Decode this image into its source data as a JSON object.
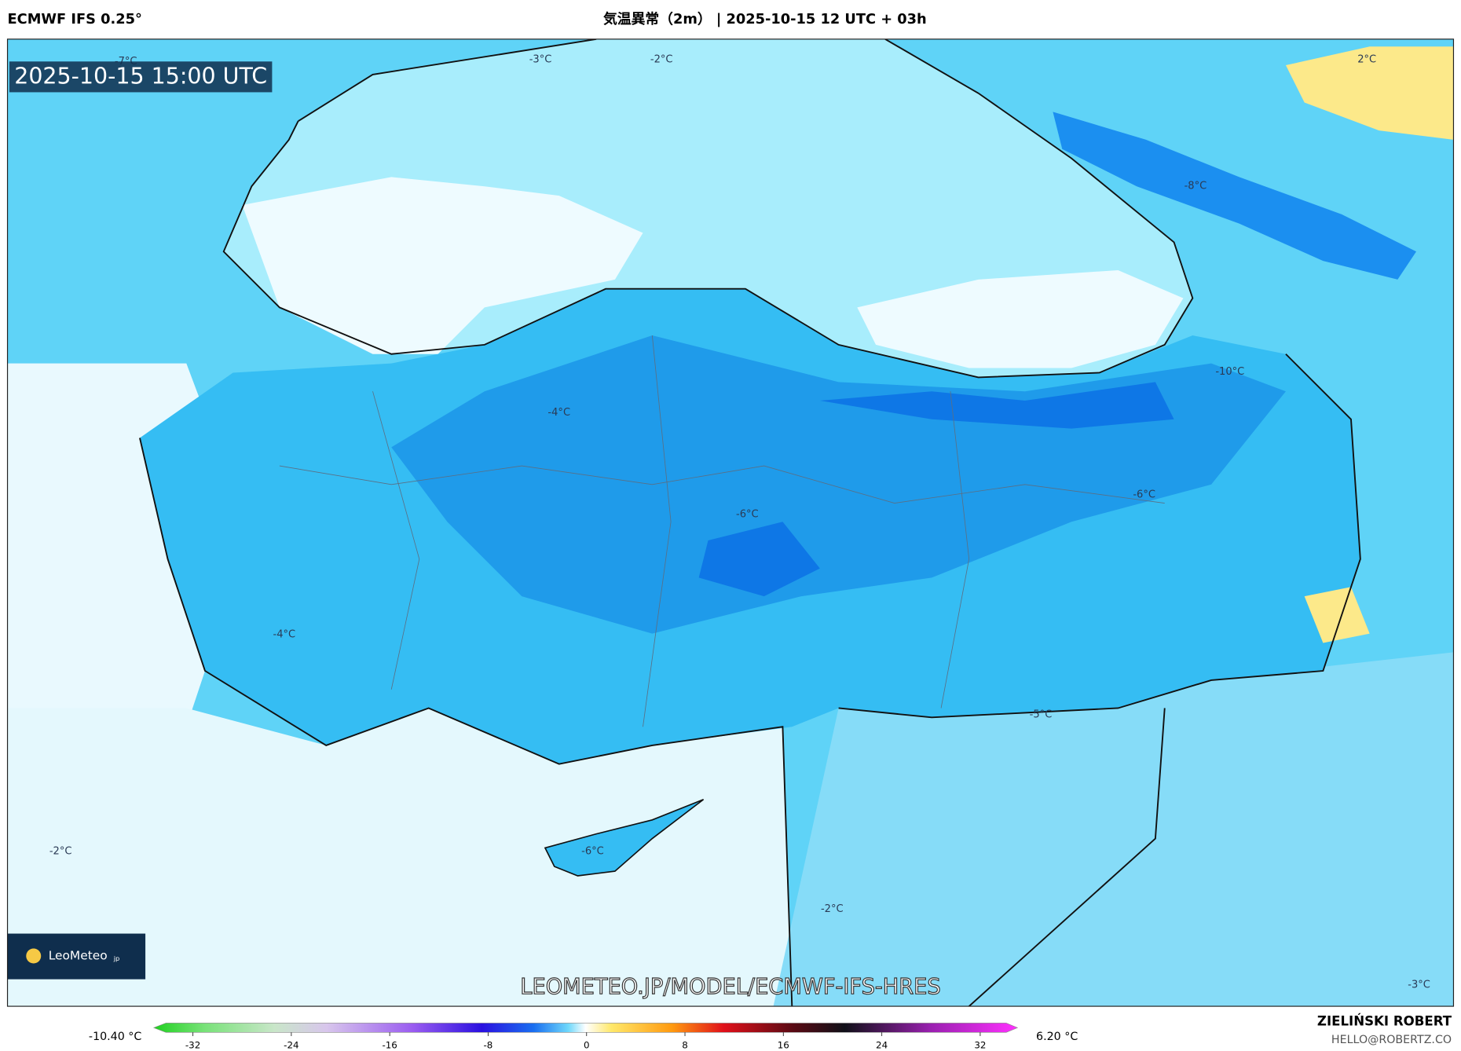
{
  "header": {
    "model": "ECMWF IFS 0.25°",
    "title": "気温異常（2m） | 2025-10-15 12 UTC + 03h"
  },
  "map": {
    "valid_time": "2025-10-15 15:00 UTC",
    "contour_labels": [
      "-7°C",
      "-3°C",
      "-2°C",
      "2°C",
      "-8°C",
      "-10°C",
      "-4°C",
      "-6°C",
      "-6°C",
      "-4°C",
      "-5°C",
      "-2°C",
      "-6°C",
      "-2°C",
      "-3°C"
    ],
    "logo": {
      "name": "LeoMeteo",
      "suffix": "jp"
    },
    "watermark": "LEOMETEO.JP/MODEL/ECMWF-IFS-HRES"
  },
  "colorbar": {
    "min_label": "-10.40 °C",
    "max_label": "6.20 °C",
    "ticks": [
      -32,
      -24,
      -16,
      -8,
      0,
      8,
      16,
      24,
      32
    ]
  },
  "footer": {
    "author": "ZIELIŃSKI ROBERT",
    "email": "HELLO@ROBERTZ.CO"
  }
}
